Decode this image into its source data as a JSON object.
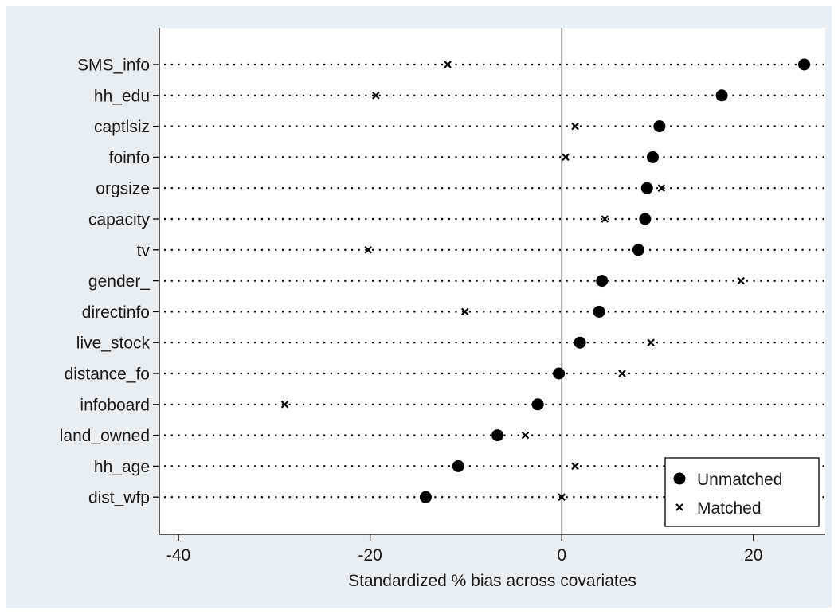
{
  "chart_data": {
    "type": "scatter",
    "title": "",
    "xlabel": "Standardized % bias across covariates",
    "ylabel": "",
    "xlim": [
      -42,
      27.5
    ],
    "xticks": [
      -40,
      -20,
      0,
      20
    ],
    "xtick_labels": [
      "-40",
      "-20",
      "0",
      "20"
    ],
    "reference_line_x": 0,
    "grid": "dotted horizontal lines per covariate",
    "legend_position": "bottom-right",
    "categories": [
      "SMS_info",
      "hh_edu",
      "captlsiz",
      "foinfo",
      "orgsize",
      "capacity",
      "tv",
      "gender_",
      "directinfo",
      "live_stock",
      "distance_fo",
      "infoboard",
      "land_owned",
      "hh_age",
      "dist_wfp"
    ],
    "series": [
      {
        "name": "Unmatched",
        "marker": "circle",
        "values": [
          25.3,
          16.7,
          10.2,
          9.5,
          8.9,
          8.7,
          8.0,
          4.2,
          3.9,
          1.9,
          -0.3,
          -2.5,
          -6.7,
          -10.8,
          -14.2
        ]
      },
      {
        "name": "Matched",
        "marker": "x",
        "values": [
          -11.9,
          -19.4,
          1.4,
          0.4,
          10.4,
          4.5,
          -20.2,
          18.7,
          -10.1,
          9.3,
          6.3,
          -28.9,
          -3.8,
          1.4,
          0.0
        ]
      }
    ]
  }
}
